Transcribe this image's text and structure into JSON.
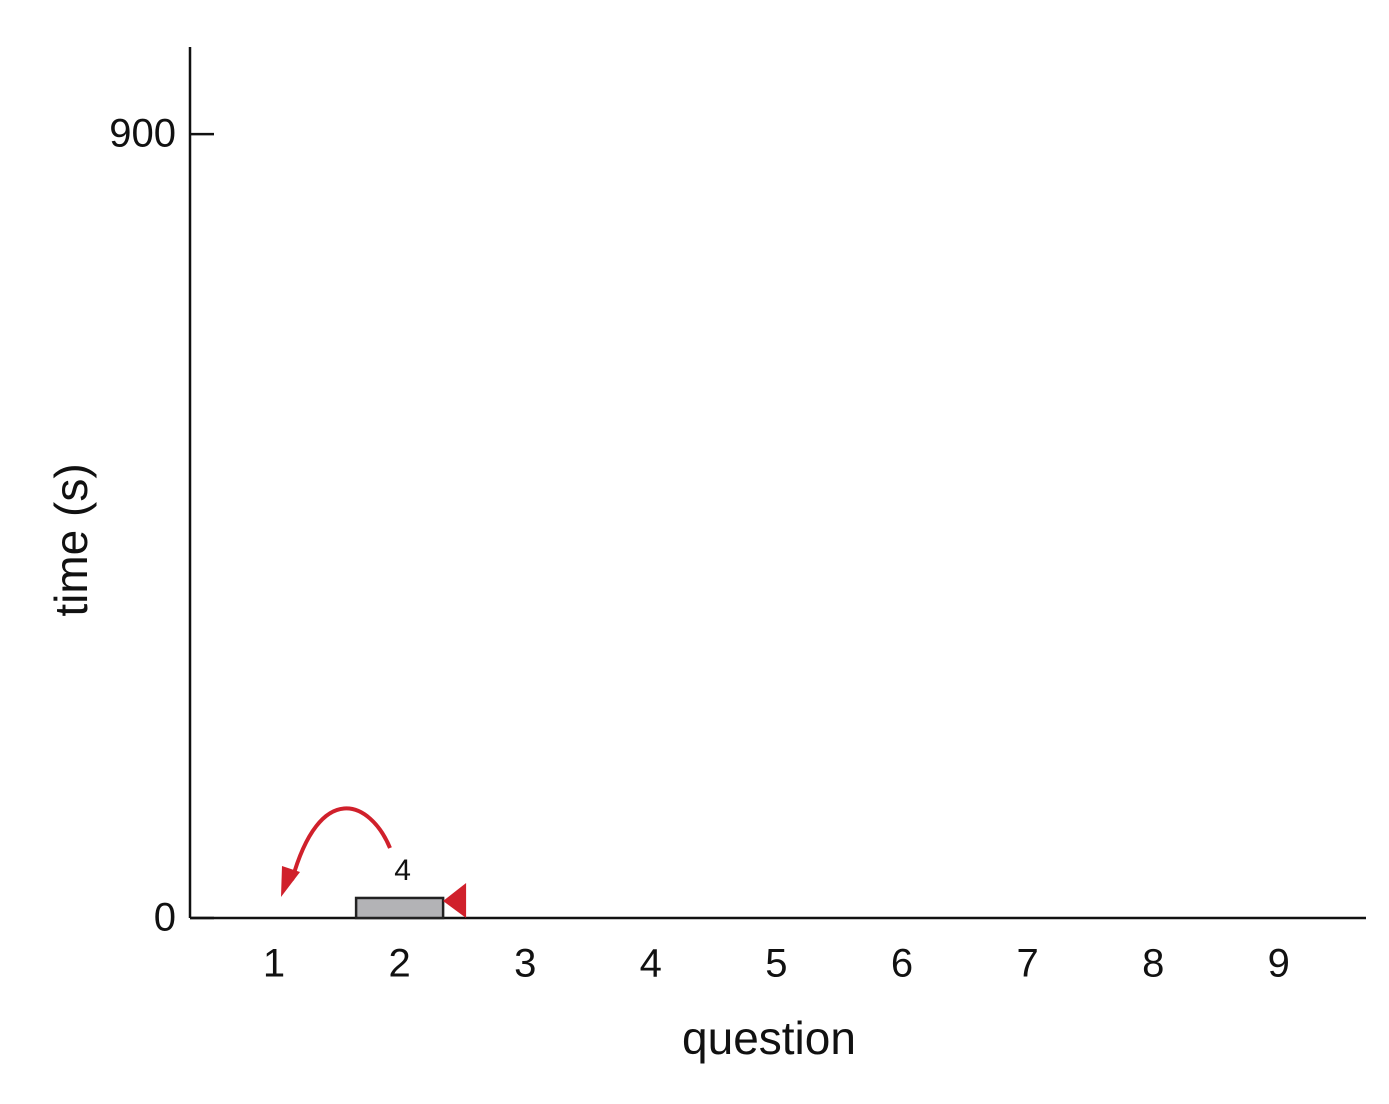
{
  "chart_data": {
    "type": "bar",
    "categories": [
      "1",
      "2",
      "3",
      "4",
      "5",
      "6",
      "7",
      "8",
      "9"
    ],
    "values": [
      null,
      23,
      null,
      null,
      null,
      null,
      null,
      null,
      null
    ],
    "color": "#b3b3b6",
    "annotations": [
      {
        "category": 1,
        "text": "4"
      }
    ],
    "xlabel": "question",
    "ylabel": "time (s)",
    "ylim": [
      0,
      1000
    ],
    "yticks": [
      0,
      900
    ],
    "grid": false
  }
}
